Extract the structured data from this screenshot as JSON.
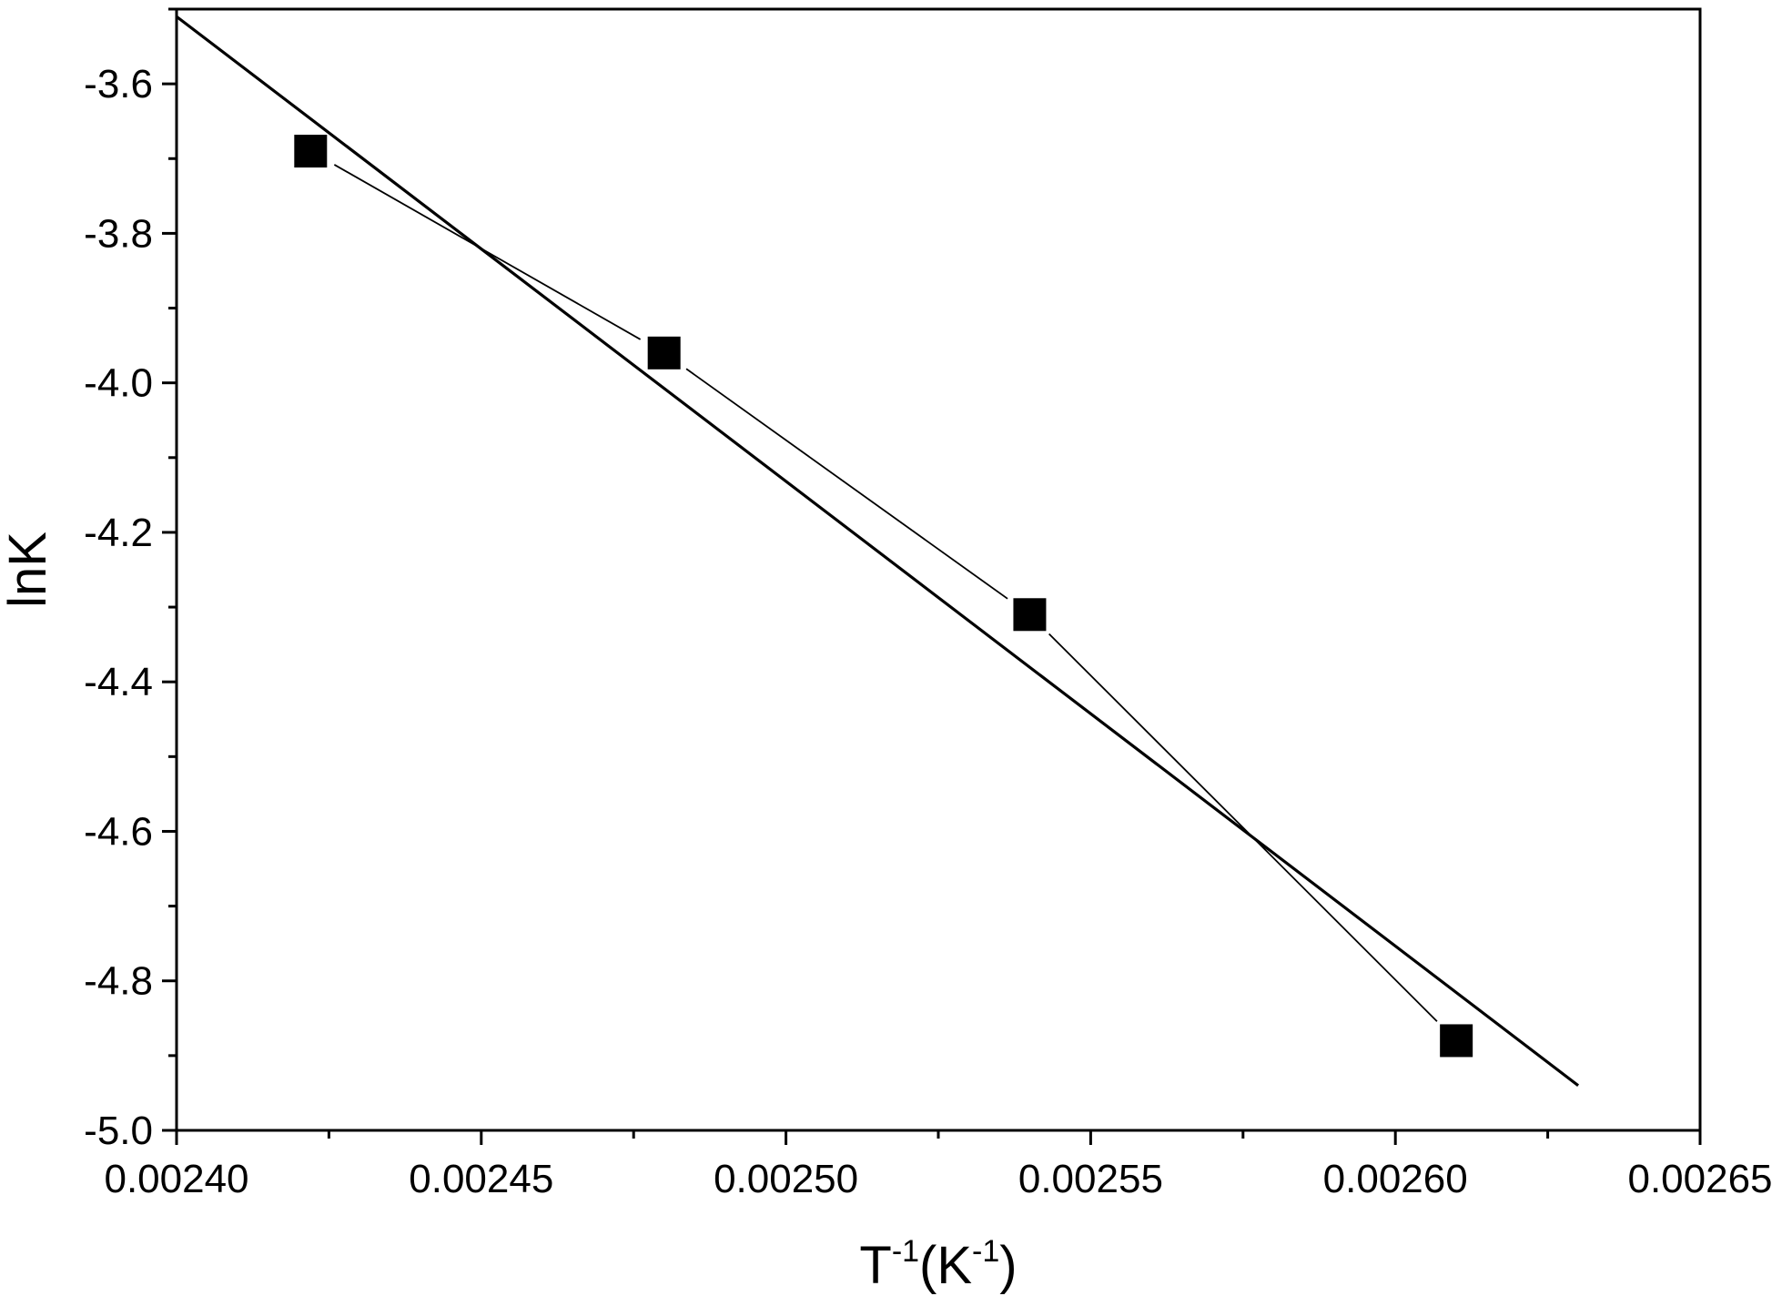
{
  "chart_data": {
    "type": "scatter",
    "xlabel": {
      "base": "T",
      "sup1": "-1",
      "mid": "(K",
      "sup2": "-1",
      "end": ")"
    },
    "ylabel": "lnK",
    "xlim": [
      0.0024,
      0.00265
    ],
    "ylim": [
      -5.0,
      -3.5
    ],
    "x_ticks": [
      0.0024,
      0.00245,
      0.0025,
      0.00255,
      0.0026,
      0.00265
    ],
    "x_tick_labels": [
      "0.00240",
      "0.00245",
      "0.00250",
      "0.00255",
      "0.00260",
      "0.00265"
    ],
    "x_minor_ticks": [
      0.002425,
      0.002475,
      0.002525,
      0.002575,
      0.002625
    ],
    "y_ticks": [
      -5.0,
      -4.8,
      -4.6,
      -4.4,
      -4.2,
      -4.0,
      -3.8,
      -3.6
    ],
    "y_tick_labels": [
      "-5.0",
      "-4.8",
      "-4.6",
      "-4.4",
      "-4.2",
      "-4.0",
      "-3.8",
      "-3.6"
    ],
    "y_minor_ticks": [
      -4.9,
      -4.7,
      -4.5,
      -4.3,
      -4.1,
      -3.9,
      -3.7,
      -3.5
    ],
    "grid": false,
    "legend": "none",
    "series": [
      {
        "marker": "square",
        "connected": true,
        "x": [
          0.002422,
          0.00248,
          0.00254,
          0.00261
        ],
        "y": [
          -3.69,
          -3.96,
          -4.31,
          -4.88
        ]
      }
    ],
    "fit_line": {
      "x": [
        0.0024,
        0.00263
      ],
      "y": [
        -3.51,
        -4.94
      ]
    },
    "colors": {
      "markers": "#000000",
      "lines": "#000000",
      "axes": "#000000"
    }
  }
}
